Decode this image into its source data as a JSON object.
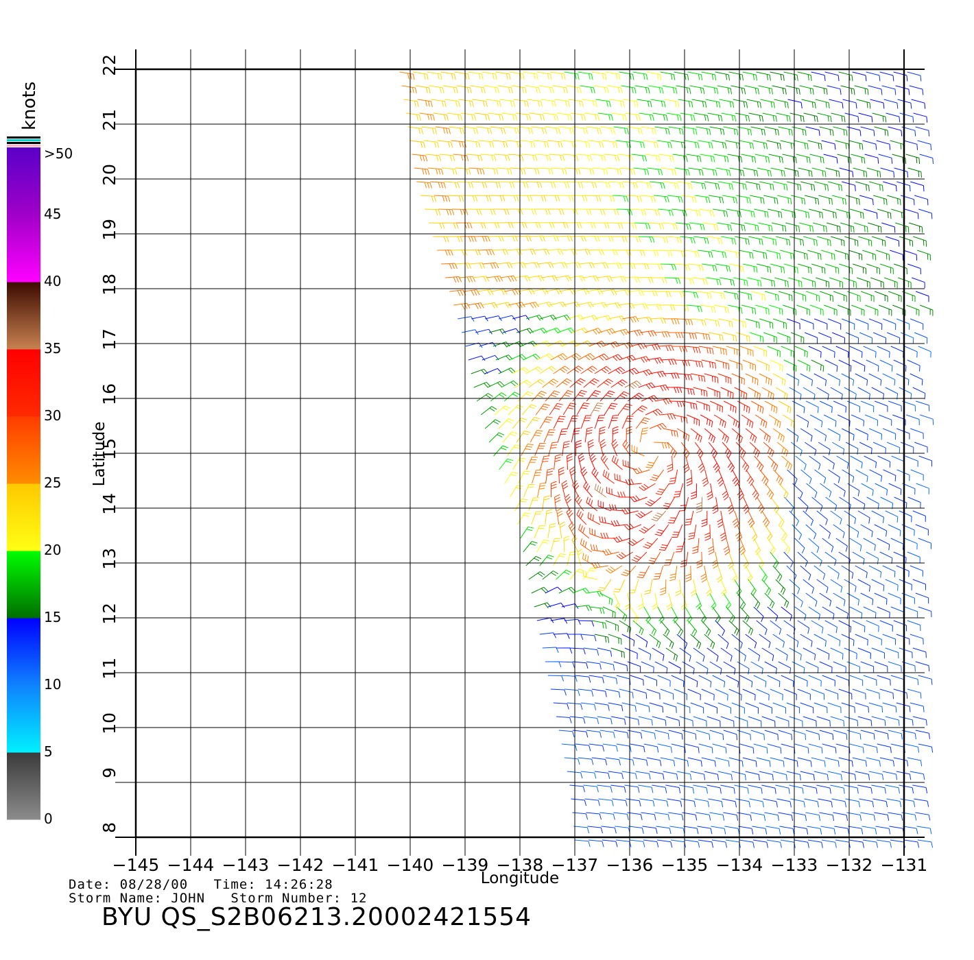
{
  "colorbar": {
    "units": "knots",
    "tick_labels": [
      "0",
      "5",
      "10",
      "15",
      "20",
      "25",
      "30",
      "35",
      "40",
      "45",
      ">50"
    ],
    "segments": [
      {
        "from": 0,
        "to": 5,
        "top": "#3a3a3a",
        "bottom": "#8c8c8c"
      },
      {
        "from": 5,
        "to": 10,
        "top": "#0f82ff",
        "bottom": "#00f0ff"
      },
      {
        "from": 10,
        "to": 15,
        "top": "#0000ff",
        "bottom": "#0f82ff"
      },
      {
        "from": 15,
        "to": 20,
        "top": "#00ff00",
        "bottom": "#006e00"
      },
      {
        "from": 20,
        "to": 25,
        "top": "#ffc800",
        "bottom": "#ffff14"
      },
      {
        "from": 25,
        "to": 30,
        "top": "#ff3c00",
        "bottom": "#ff8c00"
      },
      {
        "from": 30,
        "to": 35,
        "top": "#ff0000",
        "bottom": "#ff2a00"
      },
      {
        "from": 35,
        "to": 40,
        "top": "#3c0a00",
        "bottom": "#c88250"
      },
      {
        "from": 40,
        "to": 45,
        "top": "#a000c8",
        "bottom": "#ff00ff"
      },
      {
        "from": 45,
        "to": 50,
        "top": "#5a00c8",
        "bottom": "#a000c8"
      }
    ],
    "top_stripes": [
      "#000000",
      "#00d2d2",
      "#000000",
      "#ffb4c8"
    ]
  },
  "axes": {
    "xlabel": "Longitude",
    "ylabel": "Latitude",
    "xlim": [
      -145,
      -131
    ],
    "ylim": [
      8,
      22
    ],
    "xticks": [
      -145,
      -144,
      -143,
      -142,
      -141,
      -140,
      -139,
      -138,
      -137,
      -136,
      -135,
      -134,
      -133,
      -132,
      -131
    ],
    "xtick_labels": [
      "−145",
      "−144",
      "−143",
      "−142",
      "−141",
      "−140",
      "−139",
      "−138",
      "−137",
      "−136",
      "−135",
      "−134",
      "−133",
      "−132",
      "−131"
    ],
    "yticks": [
      8,
      9,
      10,
      11,
      12,
      13,
      14,
      15,
      16,
      17,
      18,
      19,
      20,
      21,
      22
    ],
    "ytick_labels": [
      "8",
      "9",
      "10",
      "11",
      "12",
      "13",
      "14",
      "15",
      "16",
      "17",
      "18",
      "19",
      "20",
      "21",
      "22"
    ],
    "grid": true
  },
  "chart_data": {
    "type": "wind-barbs",
    "xlabel": "Longitude",
    "ylabel": "Latitude",
    "units": "knots",
    "xlim": [
      -145,
      -131
    ],
    "ylim": [
      8,
      22
    ],
    "swath_lon_west_edge": [
      [
        22,
        -140.2
      ],
      [
        20,
        -139.9
      ],
      [
        19,
        -139.6
      ],
      [
        18,
        -139.3
      ],
      [
        17,
        -139.0
      ],
      [
        16,
        -138.8
      ],
      [
        15,
        -138.5
      ],
      [
        14,
        -138.1
      ],
      [
        13,
        -137.9
      ],
      [
        12,
        -137.7
      ],
      [
        11,
        -137.5
      ],
      [
        10,
        -137.3
      ],
      [
        9,
        -137.1
      ],
      [
        8,
        -137.0
      ]
    ],
    "storm_center": {
      "lon": -135.6,
      "lat": 15.1
    },
    "swath_lon_east_edge": -130.7
  },
  "info": {
    "date_label": "Date:",
    "date": "08/28/00",
    "time_label": "Time:",
    "time": "14:26:28",
    "storm_name_label": "Storm Name:",
    "storm_name": "JOHN",
    "storm_number_label": "Storm Number:",
    "storm_number": "12"
  },
  "file_title": "BYU QS_S2B06213.20002421554"
}
